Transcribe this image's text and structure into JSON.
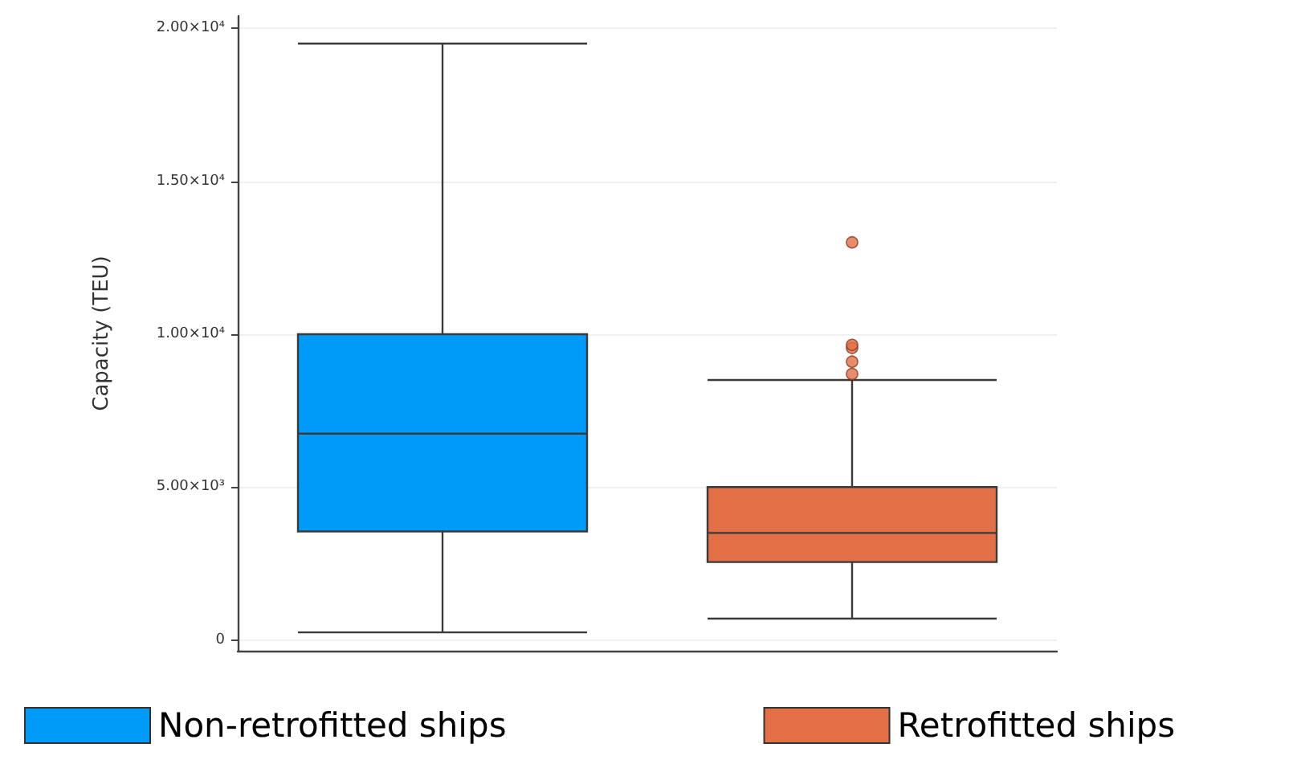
{
  "chart_data": {
    "type": "box",
    "ylabel": "Capacity (TEU)",
    "categories": [
      null,
      null
    ],
    "series": [
      {
        "name": "Non-retrofitted ships",
        "color": "#009af9",
        "boxes": [
          {
            "low": 250,
            "q1": 3550,
            "median": 6750,
            "q3": 10000,
            "high": 19500
          },
          null
        ]
      },
      {
        "name": "Retrofitted ships",
        "color": "#e26f46",
        "boxes": [
          null,
          {
            "low": 700,
            "q1": 2550,
            "median": 3500,
            "q3": 5000,
            "high": 8500,
            "outliers": [
              8700,
              9100,
              9550,
              9650,
              13000
            ]
          }
        ]
      }
    ],
    "ylim": [
      -350,
      20400
    ],
    "yticks": [
      {
        "value": 0,
        "label": "0"
      },
      {
        "value": 5000,
        "label": "5.00×10³"
      },
      {
        "value": 10000,
        "label": "1.00×10⁴"
      },
      {
        "value": 15000,
        "label": "1.50×10⁴"
      },
      {
        "value": 20000,
        "label": "2.00×10⁴"
      }
    ],
    "grid": "y",
    "legend": "bottom"
  }
}
